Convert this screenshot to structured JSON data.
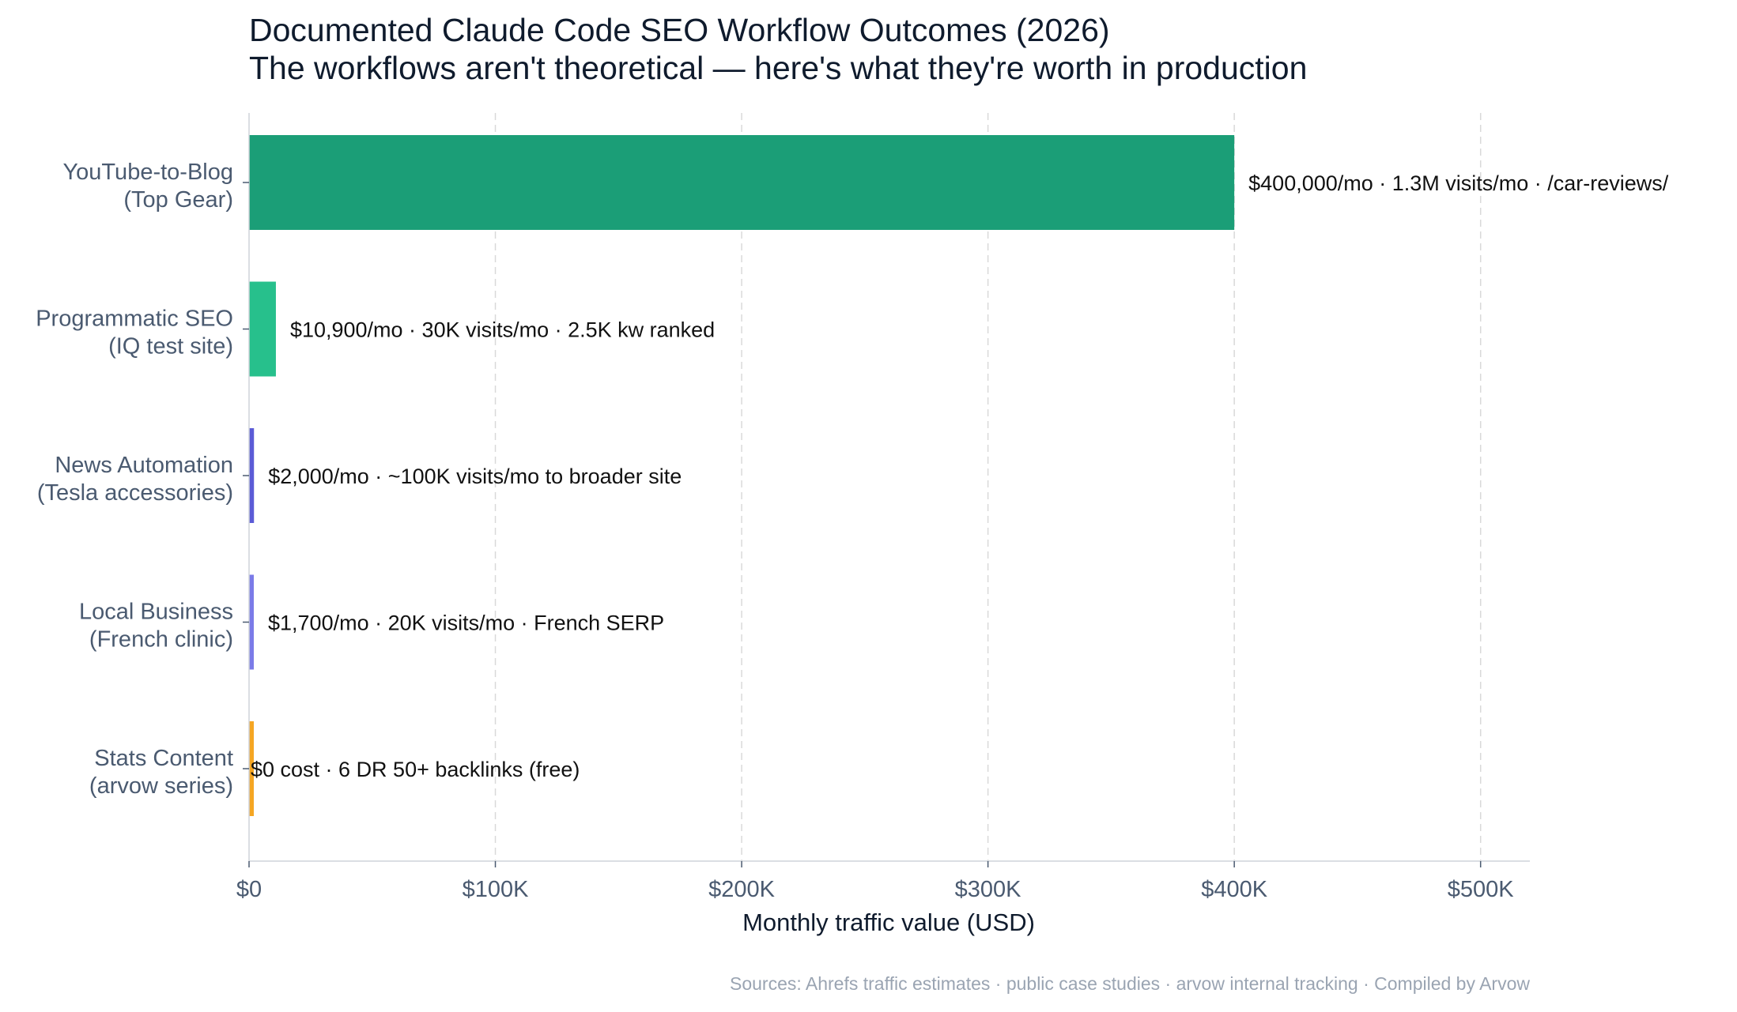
{
  "chart_data": {
    "type": "bar",
    "orientation": "horizontal",
    "title": "Documented Claude Code SEO Workflow Outcomes (2026)",
    "subtitle": "The workflows aren't theoretical — here's what they're worth in production",
    "xlabel": "Monthly traffic value (USD)",
    "ylabel": "",
    "xlim": [
      0,
      520000
    ],
    "x_ticks": [
      0,
      100000,
      200000,
      300000,
      400000,
      500000
    ],
    "x_tick_labels": [
      "$0",
      "$100K",
      "$200K",
      "$300K",
      "$400K",
      "$500K"
    ],
    "grid": "vertical dashed",
    "legend": "none",
    "categories": [
      {
        "line1": "YouTube-to-Blog",
        "line2": "(Top Gear)"
      },
      {
        "line1": "Programmatic SEO",
        "line2": "(IQ test site)"
      },
      {
        "line1": "News Automation",
        "line2": "(Tesla accessories)"
      },
      {
        "line1": "Local Business",
        "line2": "(French clinic)"
      },
      {
        "line1": "Stats Content",
        "line2": "(arvow series)"
      }
    ],
    "values": [
      400000,
      10900,
      2000,
      1700,
      0
    ],
    "bar_colors": [
      "#1b9e77",
      "#27c08c",
      "#5b5bd6",
      "#7b7be8",
      "#f5a623"
    ],
    "data_labels": [
      "$400,000/mo  ·  1.3M visits/mo · /car-reviews/",
      "$10,900/mo  ·  30K visits/mo · 2.5K kw ranked",
      "$2,000/mo  ·  ~100K visits/mo to broader site",
      "$1,700/mo  ·  20K visits/mo · French SERP",
      "$0 cost  ·  6 DR 50+ backlinks (free)"
    ],
    "source_note": "Sources: Ahrefs traffic estimates · public case studies · arvow internal tracking · Compiled by Arvow"
  },
  "colors": {
    "title": "#0f1b2d",
    "axis_text": "#4a5a70",
    "grid": "#d9d9d9",
    "axis_line": "#cfd4da",
    "source": "#9aa4b2"
  }
}
